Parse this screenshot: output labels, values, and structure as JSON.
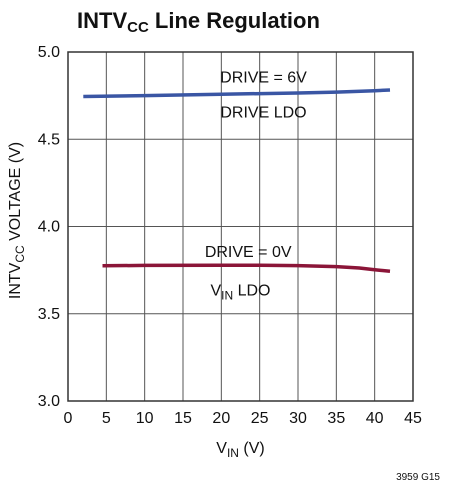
{
  "chart_data": {
    "type": "line",
    "title": {
      "main": "INTV",
      "sub": "CC",
      "rest": " Line Regulation"
    },
    "xlabel": {
      "main": "V",
      "sub": "IN",
      "rest": " (V)"
    },
    "ylabel": {
      "main": "INTV",
      "sub": "CC",
      "rest": " VOLTAGE (V)"
    },
    "xlim": [
      0,
      45
    ],
    "ylim": [
      3.0,
      5.0
    ],
    "xticks": [
      0,
      5,
      10,
      15,
      20,
      25,
      30,
      35,
      40,
      45
    ],
    "yticks": [
      3.0,
      3.5,
      4.0,
      4.5,
      5.0
    ],
    "xtick_labels": [
      "0",
      "5",
      "10",
      "15",
      "20",
      "25",
      "30",
      "35",
      "40",
      "45"
    ],
    "ytick_labels": [
      "3.0",
      "3.5",
      "4.0",
      "4.5",
      "5.0"
    ],
    "grid": true,
    "series": [
      {
        "color": "#3a56a4",
        "x": [
          2,
          10,
          20,
          30,
          35,
          40,
          42
        ],
        "y": [
          4.745,
          4.75,
          4.758,
          4.765,
          4.77,
          4.778,
          4.782
        ]
      },
      {
        "color": "#8b1538",
        "x": [
          4.5,
          10,
          20,
          25,
          30,
          35,
          38,
          40,
          42
        ],
        "y": [
          3.775,
          3.777,
          3.778,
          3.778,
          3.776,
          3.77,
          3.762,
          3.752,
          3.743
        ]
      }
    ],
    "annotations": [
      {
        "text": "DRIVE = 6V",
        "x": 25.5,
        "y": 4.86
      },
      {
        "text": "DRIVE LDO",
        "x": 25.5,
        "y": 4.66
      },
      {
        "text": "DRIVE = 0V",
        "x": 23.5,
        "y": 3.86
      },
      {
        "main": "V",
        "sub": "IN",
        "rest": " LDO",
        "x": 22.5,
        "y": 3.64
      }
    ]
  },
  "figure_id": "3959 G15"
}
